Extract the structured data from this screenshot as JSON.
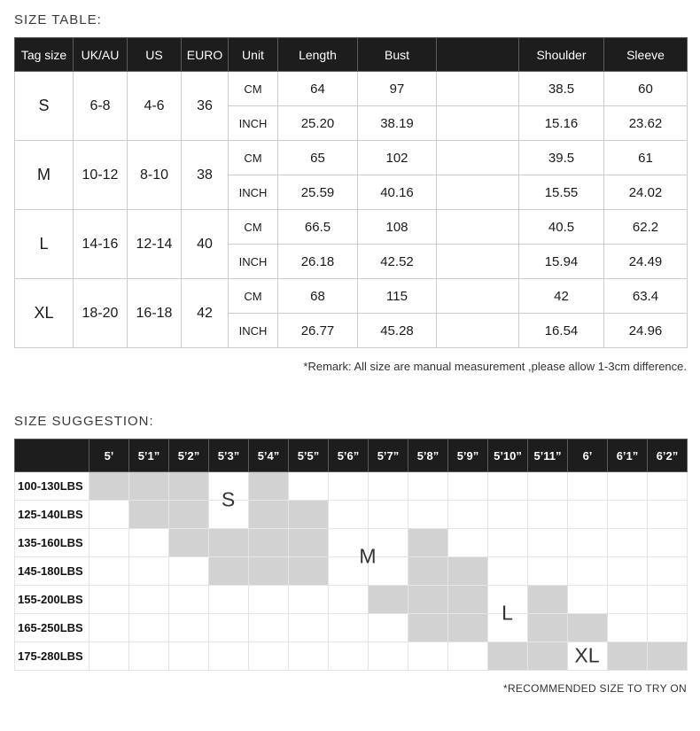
{
  "colors": {
    "header_bg": "#1d1d1d",
    "shade_color": "#d2d2d2"
  },
  "chart_data": [
    {
      "type": "table",
      "title": "SIZE TABLE:",
      "columns": [
        "Tag size",
        "UK/AU",
        "US",
        "EURO",
        "Unit",
        "Length",
        "Bust",
        "",
        "Shoulder",
        "Sleeve"
      ],
      "unit_labels": [
        "CM",
        "INCH"
      ],
      "rows": [
        {
          "tag_size": "S",
          "uk_au": "6-8",
          "us": "4-6",
          "euro": "36",
          "units": [
            {
              "unit": "CM",
              "values": [
                "64",
                "97",
                "",
                "38.5",
                "60"
              ]
            },
            {
              "unit": "INCH",
              "values": [
                "25.20",
                "38.19",
                "",
                "15.16",
                "23.62"
              ]
            }
          ]
        },
        {
          "tag_size": "M",
          "uk_au": "10-12",
          "us": "8-10",
          "euro": "38",
          "units": [
            {
              "unit": "CM",
              "values": [
                "65",
                "102",
                "",
                "39.5",
                "61"
              ]
            },
            {
              "unit": "INCH",
              "values": [
                "25.59",
                "40.16",
                "",
                "15.55",
                "24.02"
              ]
            }
          ]
        },
        {
          "tag_size": "L",
          "uk_au": "14-16",
          "us": "12-14",
          "euro": "40",
          "units": [
            {
              "unit": "CM",
              "values": [
                "66.5",
                "108",
                "",
                "40.5",
                "62.2"
              ]
            },
            {
              "unit": "INCH",
              "values": [
                "26.18",
                "42.52",
                "",
                "15.94",
                "24.49"
              ]
            }
          ]
        },
        {
          "tag_size": "XL",
          "uk_au": "18-20",
          "us": "16-18",
          "euro": "42",
          "units": [
            {
              "unit": "CM",
              "values": [
                "68",
                "115",
                "",
                "42",
                "63.4"
              ]
            },
            {
              "unit": "INCH",
              "values": [
                "26.77",
                "45.28",
                "",
                "16.54",
                "24.96"
              ]
            }
          ]
        }
      ],
      "remark": "*Remark: All size are manual measurement ,please allow 1-3cm difference."
    },
    {
      "type": "heatmap",
      "title": "SIZE SUGGESTION:",
      "x_labels": [
        "5’",
        "5’1”",
        "5’2”",
        "5’3”",
        "5’4”",
        "5’5”",
        "5’6”",
        "5’7”",
        "5’8”",
        "5’9”",
        "5’10”",
        "5’11”",
        "6’",
        "6’1”",
        "6’2”"
      ],
      "y_labels": [
        "100-130LBS",
        "125-140LBS",
        "135-160LBS",
        "145-180LBS",
        "155-200LBS",
        "165-250LBS",
        "175-280LBS"
      ],
      "shaded_columns_by_row": [
        [
          0,
          1,
          2,
          4
        ],
        [
          1,
          2,
          4,
          5
        ],
        [
          2,
          3,
          4,
          5,
          8
        ],
        [
          3,
          4,
          5,
          8,
          9
        ],
        [
          7,
          8,
          9,
          11
        ],
        [
          8,
          9,
          11,
          12
        ],
        [
          10,
          11,
          13,
          14
        ]
      ],
      "size_labels": [
        {
          "label": "S",
          "col": 3,
          "row": 0,
          "rowspan": 2
        },
        {
          "label": "M",
          "col": 6.5,
          "row": 2,
          "rowspan": 2
        },
        {
          "label": "L",
          "col": 10,
          "row": 4,
          "rowspan": 2
        },
        {
          "label": "XL",
          "col": 12,
          "row": 6,
          "rowspan": 1
        }
      ],
      "note": "*RECOMMENDED SIZE TO TRY ON"
    }
  ]
}
